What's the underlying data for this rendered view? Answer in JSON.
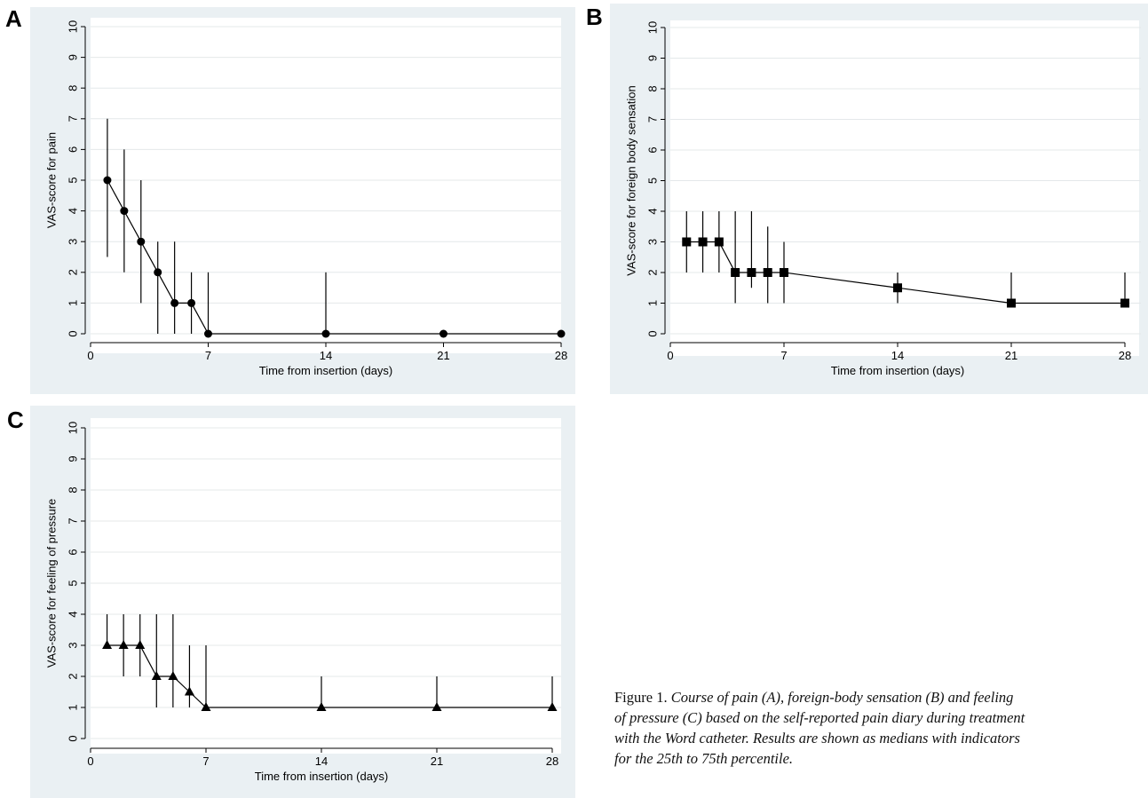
{
  "chart_data": [
    {
      "panel": "A",
      "type": "line",
      "marker": "circle",
      "xlabel": "Time from insertion (days)",
      "ylabel": "VAS-score for pain",
      "xticks": [
        0,
        7,
        14,
        21,
        28
      ],
      "yticks": [
        0,
        1,
        2,
        3,
        4,
        5,
        6,
        7,
        8,
        9,
        10
      ],
      "xlim": [
        0,
        28
      ],
      "ylim": [
        0,
        10
      ],
      "grid": "horizontal",
      "x": [
        1,
        2,
        3,
        4,
        5,
        6,
        7,
        14,
        21,
        28
      ],
      "median": [
        5,
        4,
        3,
        2,
        1,
        1,
        0,
        0,
        0,
        0
      ],
      "p25": [
        2.5,
        2,
        1,
        0,
        0,
        0,
        0,
        0,
        0,
        0
      ],
      "p75": [
        7,
        6,
        5,
        3,
        3,
        2,
        2,
        2,
        0,
        0
      ]
    },
    {
      "panel": "B",
      "type": "line",
      "marker": "square",
      "xlabel": "Time from insertion (days)",
      "ylabel": "VAS-score for foreign body sensation",
      "xticks": [
        0,
        7,
        14,
        21,
        28
      ],
      "yticks": [
        0,
        1,
        2,
        3,
        4,
        5,
        6,
        7,
        8,
        9,
        10
      ],
      "xlim": [
        0,
        28
      ],
      "ylim": [
        0,
        10
      ],
      "grid": "horizontal",
      "x": [
        1,
        2,
        3,
        4,
        5,
        6,
        7,
        14,
        21,
        28
      ],
      "median": [
        3,
        3,
        3,
        2,
        2,
        2,
        2,
        1.5,
        1,
        1
      ],
      "p25": [
        2,
        2,
        2,
        1,
        1.5,
        1,
        1,
        1,
        1,
        1
      ],
      "p75": [
        4,
        4,
        4,
        4,
        4,
        3.5,
        3,
        2,
        2,
        2
      ]
    },
    {
      "panel": "C",
      "type": "line",
      "marker": "triangle",
      "xlabel": "Time from insertion (days)",
      "ylabel": "VAS-score for feeling of pressure",
      "xticks": [
        0,
        7,
        14,
        21,
        28
      ],
      "yticks": [
        0,
        1,
        2,
        3,
        4,
        5,
        6,
        7,
        8,
        9,
        10
      ],
      "xlim": [
        0,
        28
      ],
      "ylim": [
        0,
        10
      ],
      "grid": "horizontal",
      "x": [
        1,
        2,
        3,
        4,
        5,
        6,
        7,
        14,
        21,
        28
      ],
      "median": [
        3,
        3,
        3,
        2,
        2,
        1.5,
        1,
        1,
        1,
        1
      ],
      "p25": [
        3,
        2,
        2,
        1,
        1,
        1,
        1,
        1,
        1,
        1
      ],
      "p75": [
        4,
        4,
        4,
        4,
        4,
        3,
        3,
        2,
        2,
        2
      ]
    }
  ],
  "caption": {
    "label": "Figure 1.",
    "lines": [
      "Course of pain (A), foreign-body sensation (B) and feeling",
      "of pressure (C) based on the self-reported pain diary during treatment",
      "with the Word catheter. Results are shown as medians with indicators",
      "for the 25th to 75th percentile."
    ]
  }
}
